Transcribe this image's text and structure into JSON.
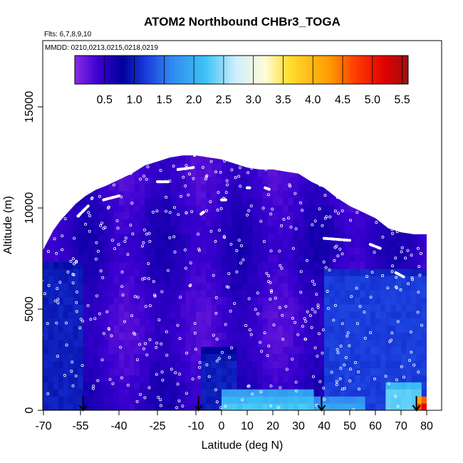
{
  "chart_data": {
    "type": "heatmap",
    "title": "ATOM2 Northbound CHBr3_TOGA",
    "flights_label": "Flts: 6,7,8,9,10",
    "mmdd_label": "MMDD: 0210,0213,0215,0218,0219",
    "xlabel": "Latitude (deg N)",
    "ylabel": "Altitude (m)",
    "xlim": [
      -70,
      85
    ],
    "ylim": [
      0,
      18000
    ],
    "x_ticks": [
      -70,
      -55,
      -40,
      -25,
      -10,
      0,
      10,
      20,
      30,
      40,
      50,
      60,
      70,
      80
    ],
    "y_ticks": [
      0,
      5000,
      10000,
      15000
    ],
    "colorbar": {
      "min": 0,
      "max": 5.6,
      "ticks": [
        "0.5",
        "1.0",
        "1.5",
        "2.0",
        "2.5",
        "3.0",
        "3.5",
        "4.0",
        "4.5",
        "5.0",
        "5.5"
      ],
      "tick_values": [
        0.5,
        1.0,
        1.5,
        2.0,
        2.5,
        3.0,
        3.5,
        4.0,
        4.5,
        5.0,
        5.5
      ],
      "color_stops": [
        {
          "v": 0.0,
          "c": "#8a2be2"
        },
        {
          "v": 0.4,
          "c": "#3a00d0"
        },
        {
          "v": 0.8,
          "c": "#00009a"
        },
        {
          "v": 1.2,
          "c": "#1a3cdc"
        },
        {
          "v": 1.6,
          "c": "#2f86f0"
        },
        {
          "v": 2.2,
          "c": "#3ec4f5"
        },
        {
          "v": 2.7,
          "c": "#cfeeff"
        },
        {
          "v": 3.2,
          "c": "#fffcd6"
        },
        {
          "v": 3.6,
          "c": "#ffde30"
        },
        {
          "v": 4.3,
          "c": "#ff9800"
        },
        {
          "v": 4.7,
          "c": "#ff4000"
        },
        {
          "v": 5.2,
          "c": "#e00000"
        },
        {
          "v": 5.6,
          "c": "#a01010"
        }
      ]
    },
    "envelope_top_altitude": [
      {
        "lat": -72,
        "alt": 7500
      },
      {
        "lat": -69,
        "alt": 8200
      },
      {
        "lat": -66,
        "alt": 8900
      },
      {
        "lat": -63,
        "alt": 9400
      },
      {
        "lat": -60,
        "alt": 9800
      },
      {
        "lat": -57,
        "alt": 10200
      },
      {
        "lat": -53,
        "alt": 10600
      },
      {
        "lat": -49,
        "alt": 10900
      },
      {
        "lat": -45,
        "alt": 11100
      },
      {
        "lat": -40,
        "alt": 11400
      },
      {
        "lat": -35,
        "alt": 11700
      },
      {
        "lat": -30,
        "alt": 12100
      },
      {
        "lat": -25,
        "alt": 12300
      },
      {
        "lat": -20,
        "alt": 12500
      },
      {
        "lat": -15,
        "alt": 12600
      },
      {
        "lat": -10,
        "alt": 12600
      },
      {
        "lat": -5,
        "alt": 12500
      },
      {
        "lat": 0,
        "alt": 12400
      },
      {
        "lat": 5,
        "alt": 12200
      },
      {
        "lat": 10,
        "alt": 12000
      },
      {
        "lat": 15,
        "alt": 11900
      },
      {
        "lat": 20,
        "alt": 11900
      },
      {
        "lat": 25,
        "alt": 11800
      },
      {
        "lat": 30,
        "alt": 11700
      },
      {
        "lat": 35,
        "alt": 11300
      },
      {
        "lat": 40,
        "alt": 11000
      },
      {
        "lat": 45,
        "alt": 10500
      },
      {
        "lat": 50,
        "alt": 10100
      },
      {
        "lat": 55,
        "alt": 9800
      },
      {
        "lat": 60,
        "alt": 9500
      },
      {
        "lat": 65,
        "alt": 9000
      },
      {
        "lat": 70,
        "alt": 8800
      },
      {
        "lat": 75,
        "alt": 8700
      },
      {
        "lat": 80,
        "alt": 8700
      }
    ],
    "flight_track_dashes": [
      {
        "lat0": -56,
        "alt0": 9600,
        "lat1": -52,
        "alt1": 10100
      },
      {
        "lat0": -46,
        "alt0": 10400,
        "lat1": -40,
        "alt1": 10600
      },
      {
        "lat0": -25,
        "alt0": 11300,
        "lat1": -20,
        "alt1": 11300
      },
      {
        "lat0": -17,
        "alt0": 11900,
        "lat1": -11,
        "alt1": 12000
      },
      {
        "lat0": -8,
        "alt0": 9700,
        "lat1": -7,
        "alt1": 9800
      },
      {
        "lat0": 0,
        "alt0": 10400,
        "lat1": 2,
        "alt1": 10400
      },
      {
        "lat0": 10,
        "alt0": 11000,
        "lat1": 11,
        "alt1": 11000
      },
      {
        "lat0": 17,
        "alt0": 11000,
        "lat1": 19,
        "alt1": 10900
      },
      {
        "lat0": 40,
        "alt0": 8500,
        "lat1": 50,
        "alt1": 8400
      },
      {
        "lat0": 58,
        "alt0": 8200,
        "lat1": 62,
        "alt1": 8000
      },
      {
        "lat0": 68,
        "alt0": 6800,
        "lat1": 71,
        "alt1": 6600
      },
      {
        "lat0": -10.5,
        "alt0": 12600,
        "lat1": -10,
        "alt1": 13000
      }
    ],
    "enhanced_regions": [
      {
        "lat0": -72,
        "lat1": -55,
        "alt0": 0,
        "alt1": 7500,
        "value": 1.0
      },
      {
        "lat0": -8,
        "lat1": 5,
        "alt0": 0,
        "alt1": 3000,
        "value": 1.0
      },
      {
        "lat0": 40,
        "lat1": 80,
        "alt0": 0,
        "alt1": 7000,
        "value": 1.2
      },
      {
        "lat0": 0,
        "lat1": 35,
        "alt0": 0,
        "alt1": 900,
        "value": 2.2
      },
      {
        "lat0": 35,
        "lat1": 55,
        "alt0": 0,
        "alt1": 700,
        "value": 1.9
      },
      {
        "lat0": 65,
        "lat1": 78,
        "alt0": 0,
        "alt1": 1500,
        "value": 2.3
      },
      {
        "lat0": 76,
        "lat1": 80,
        "alt0": 0,
        "alt1": 800,
        "value": 4.6
      },
      {
        "lat0": 78,
        "lat1": 80,
        "alt0": 0,
        "alt1": 600,
        "value": 5.4
      }
    ],
    "profile_markers_lat": [
      -54,
      -9,
      39,
      76
    ]
  }
}
